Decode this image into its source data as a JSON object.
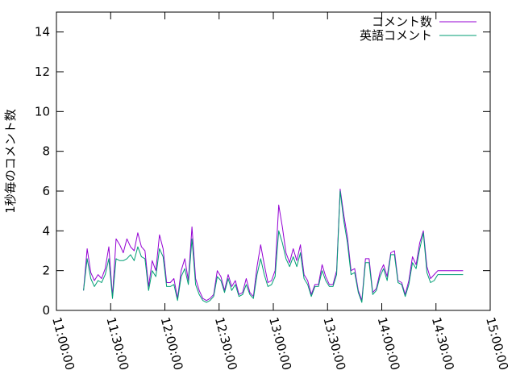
{
  "chart_data": {
    "type": "line",
    "title": "",
    "xlabel": "",
    "ylabel": "1秒毎のコメント数",
    "xlim": [
      "11:00:00",
      "15:00:00"
    ],
    "ylim": [
      0,
      15
    ],
    "grid": false,
    "legend_position": "top-right",
    "x_ticks": [
      "11:00:00",
      "11:30:00",
      "12:00:00",
      "12:30:00",
      "13:00:00",
      "13:30:00",
      "14:00:00",
      "14:30:00",
      "15:00:00"
    ],
    "y_ticks": [
      "0",
      "2",
      "4",
      "6",
      "8",
      "10",
      "12",
      "14"
    ],
    "series": [
      {
        "name": "コメント数",
        "color": "#9400d3",
        "x": [
          "11:15:00",
          "11:17:00",
          "11:19:00",
          "11:21:00",
          "11:23:00",
          "11:25:00",
          "11:27:00",
          "11:29:00",
          "11:31:00",
          "11:33:00",
          "11:35:00",
          "11:37:00",
          "11:39:00",
          "11:41:00",
          "11:43:00",
          "11:45:00",
          "11:47:00",
          "11:49:00",
          "11:51:00",
          "11:53:00",
          "11:55:00",
          "11:57:00",
          "11:59:00",
          "12:01:00",
          "12:03:00",
          "12:05:00",
          "12:07:00",
          "12:09:00",
          "12:11:00",
          "12:13:00",
          "12:15:00",
          "12:17:00",
          "12:19:00",
          "12:21:00",
          "12:23:00",
          "12:25:00",
          "12:27:00",
          "12:29:00",
          "12:31:00",
          "12:33:00",
          "12:35:00",
          "12:37:00",
          "12:39:00",
          "12:41:00",
          "12:43:00",
          "12:45:00",
          "12:47:00",
          "12:49:00",
          "12:51:00",
          "12:53:00",
          "12:55:00",
          "12:57:00",
          "12:59:00",
          "13:01:00",
          "13:03:00",
          "13:05:00",
          "13:07:00",
          "13:09:00",
          "13:11:00",
          "13:13:00",
          "13:15:00",
          "13:17:00",
          "13:19:00",
          "13:21:00",
          "13:23:00",
          "13:25:00",
          "13:27:00",
          "13:29:00",
          "13:31:00",
          "13:33:00",
          "13:35:00",
          "13:37:00",
          "13:39:00",
          "13:41:00",
          "13:43:00",
          "13:45:00",
          "13:47:00",
          "13:49:00",
          "13:51:00",
          "13:53:00",
          "13:55:00",
          "13:57:00",
          "13:59:00",
          "14:01:00",
          "14:03:00",
          "14:05:00",
          "14:07:00",
          "14:09:00",
          "14:11:00",
          "14:13:00",
          "14:15:00",
          "14:17:00",
          "14:19:00",
          "14:21:00",
          "14:23:00",
          "14:25:00",
          "14:27:00",
          "14:29:00",
          "14:31:00",
          "14:33:00",
          "14:35:00",
          "14:37:00",
          "14:39:00",
          "14:41:00",
          "14:43:00",
          "14:45:00"
        ],
        "values": [
          1.0,
          3.1,
          1.9,
          1.5,
          1.8,
          1.6,
          2.1,
          3.2,
          0.7,
          3.6,
          3.3,
          2.9,
          3.6,
          3.2,
          3.0,
          3.9,
          3.2,
          3.0,
          1.2,
          2.5,
          2.0,
          3.8,
          3.1,
          1.4,
          1.4,
          1.6,
          0.6,
          2.0,
          2.6,
          1.5,
          4.2,
          1.6,
          1.0,
          0.6,
          0.5,
          0.6,
          0.8,
          2.0,
          1.7,
          1.0,
          1.8,
          1.2,
          1.5,
          0.8,
          0.9,
          1.6,
          0.9,
          0.7,
          2.2,
          3.3,
          2.3,
          1.4,
          1.5,
          2.0,
          5.3,
          4.2,
          2.9,
          2.4,
          3.1,
          2.5,
          3.3,
          1.8,
          1.5,
          0.8,
          1.3,
          1.3,
          2.3,
          1.7,
          1.3,
          1.3,
          2.0,
          6.1,
          4.8,
          3.7,
          2.0,
          2.1,
          1.0,
          0.5,
          2.6,
          2.6,
          0.9,
          1.1,
          1.9,
          2.3,
          1.7,
          2.9,
          3.0,
          1.5,
          1.4,
          0.8,
          1.5,
          2.7,
          2.3,
          3.4,
          4.0,
          2.2,
          1.6,
          1.8,
          2.0,
          2.0,
          2.0,
          2.0,
          2.0,
          2.0,
          2.0,
          2.0
        ]
      },
      {
        "name": "英語コメント",
        "color": "#009e73",
        "x": [
          "11:15:00",
          "11:17:00",
          "11:19:00",
          "11:21:00",
          "11:23:00",
          "11:25:00",
          "11:27:00",
          "11:29:00",
          "11:31:00",
          "11:33:00",
          "11:35:00",
          "11:37:00",
          "11:39:00",
          "11:41:00",
          "11:43:00",
          "11:45:00",
          "11:47:00",
          "11:49:00",
          "11:51:00",
          "11:53:00",
          "11:55:00",
          "11:57:00",
          "11:59:00",
          "12:01:00",
          "12:03:00",
          "12:05:00",
          "12:07:00",
          "12:09:00",
          "12:11:00",
          "12:13:00",
          "12:15:00",
          "12:17:00",
          "12:19:00",
          "12:21:00",
          "12:23:00",
          "12:25:00",
          "12:27:00",
          "12:29:00",
          "12:31:00",
          "12:33:00",
          "12:35:00",
          "12:37:00",
          "12:39:00",
          "12:41:00",
          "12:43:00",
          "12:45:00",
          "12:47:00",
          "12:49:00",
          "12:51:00",
          "12:53:00",
          "12:55:00",
          "12:57:00",
          "12:59:00",
          "13:01:00",
          "13:03:00",
          "13:05:00",
          "13:07:00",
          "13:09:00",
          "13:11:00",
          "13:13:00",
          "13:15:00",
          "13:17:00",
          "13:19:00",
          "13:21:00",
          "13:23:00",
          "13:25:00",
          "13:27:00",
          "13:29:00",
          "13:31:00",
          "13:33:00",
          "13:35:00",
          "13:37:00",
          "13:39:00",
          "13:41:00",
          "13:43:00",
          "13:45:00",
          "13:47:00",
          "13:49:00",
          "13:51:00",
          "13:53:00",
          "13:55:00",
          "13:57:00",
          "13:59:00",
          "14:01:00",
          "14:03:00",
          "14:05:00",
          "14:07:00",
          "14:09:00",
          "14:11:00",
          "14:13:00",
          "14:15:00",
          "14:17:00",
          "14:19:00",
          "14:21:00",
          "14:23:00",
          "14:25:00",
          "14:27:00",
          "14:29:00",
          "14:31:00",
          "14:33:00",
          "14:35:00",
          "14:37:00",
          "14:39:00",
          "14:41:00",
          "14:43:00",
          "14:45:00"
        ],
        "values": [
          1.0,
          2.6,
          1.6,
          1.2,
          1.5,
          1.4,
          1.8,
          2.6,
          0.6,
          2.6,
          2.5,
          2.5,
          2.6,
          2.8,
          2.5,
          3.2,
          2.7,
          2.6,
          1.0,
          2.0,
          1.7,
          3.1,
          2.7,
          1.2,
          1.2,
          1.3,
          0.5,
          1.7,
          2.1,
          1.3,
          3.6,
          1.3,
          0.8,
          0.5,
          0.4,
          0.5,
          0.7,
          1.7,
          1.5,
          0.9,
          1.6,
          1.0,
          1.3,
          0.7,
          0.8,
          1.3,
          0.8,
          0.6,
          1.8,
          2.6,
          1.8,
          1.2,
          1.3,
          1.7,
          4.0,
          3.4,
          2.6,
          2.2,
          2.7,
          2.2,
          2.9,
          1.6,
          1.3,
          0.7,
          1.2,
          1.2,
          2.0,
          1.5,
          1.2,
          1.2,
          1.8,
          6.0,
          4.5,
          3.4,
          1.8,
          1.9,
          0.9,
          0.4,
          2.4,
          2.4,
          0.8,
          1.0,
          1.7,
          2.1,
          1.5,
          2.8,
          2.8,
          1.4,
          1.3,
          0.7,
          1.3,
          2.4,
          2.1,
          3.1,
          3.9,
          1.9,
          1.4,
          1.5,
          1.8,
          1.8,
          1.8,
          1.8,
          1.8,
          1.8,
          1.8,
          1.8
        ]
      }
    ]
  }
}
